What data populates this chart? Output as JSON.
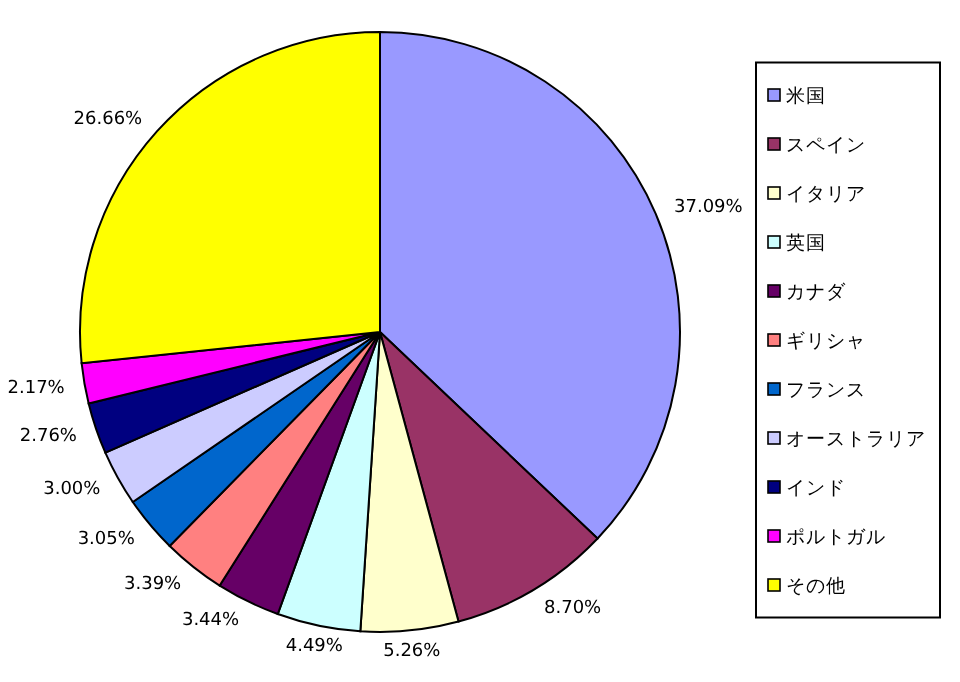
{
  "chart_data": {
    "type": "pie",
    "categories": [
      "米国",
      "スペイン",
      "イタリア",
      "英国",
      "カナダ",
      "ギリシャ",
      "フランス",
      "オーストラリア",
      "インド",
      "ポルトガル",
      "その他"
    ],
    "values": [
      37.09,
      8.7,
      5.26,
      4.49,
      3.44,
      3.39,
      3.05,
      3.0,
      2.76,
      2.17,
      26.66
    ],
    "value_labels": [
      "37.09%",
      "8.70%",
      "5.26%",
      "4.49%",
      "3.44%",
      "3.39%",
      "3.05%",
      "3.00%",
      "2.76%",
      "2.17%",
      "26.66%"
    ],
    "colors": [
      "#9999ff",
      "#993366",
      "#ffffcc",
      "#ccffff",
      "#660066",
      "#ff8080",
      "#0066cc",
      "#ccccff",
      "#000080",
      "#ff00ff",
      "#ffff00"
    ],
    "legend": "right"
  }
}
